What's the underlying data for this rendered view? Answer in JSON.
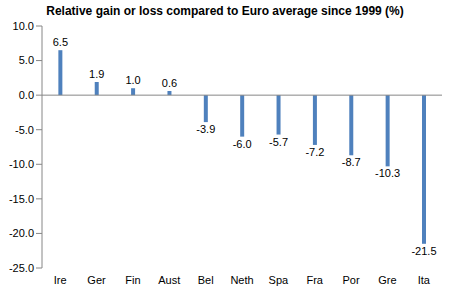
{
  "chart_data": {
    "type": "bar",
    "title": "Relative gain or loss compared to Euro average since 1999 (%)",
    "categories": [
      "Ire",
      "Ger",
      "Fin",
      "Aust",
      "Bel",
      "Neth",
      "Spa",
      "Fra",
      "Por",
      "Gre",
      "Ita"
    ],
    "values": [
      6.5,
      1.9,
      1.0,
      0.6,
      -3.9,
      -6.0,
      -5.7,
      -7.2,
      -8.7,
      -10.3,
      -21.5
    ],
    "value_labels": [
      "6.5",
      "1.9",
      "1.0",
      "0.6",
      "-3.9",
      "-6.0",
      "-5.7",
      "-7.2",
      "-8.7",
      "-10.3",
      "-21.5"
    ],
    "color": "#4f81bd",
    "ylim": [
      -25,
      10
    ],
    "yticks": [
      {
        "value": 10,
        "label": "10.0"
      },
      {
        "value": 5,
        "label": "5.0"
      },
      {
        "value": 0,
        "label": "0.0"
      },
      {
        "value": -5,
        "label": "-5.0"
      },
      {
        "value": -10,
        "label": "-10.0"
      },
      {
        "value": -15,
        "label": "-15.0"
      },
      {
        "value": -20,
        "label": "-20.0"
      },
      {
        "value": -25,
        "label": "-25.0"
      }
    ],
    "grid": false,
    "data_labels": true
  }
}
